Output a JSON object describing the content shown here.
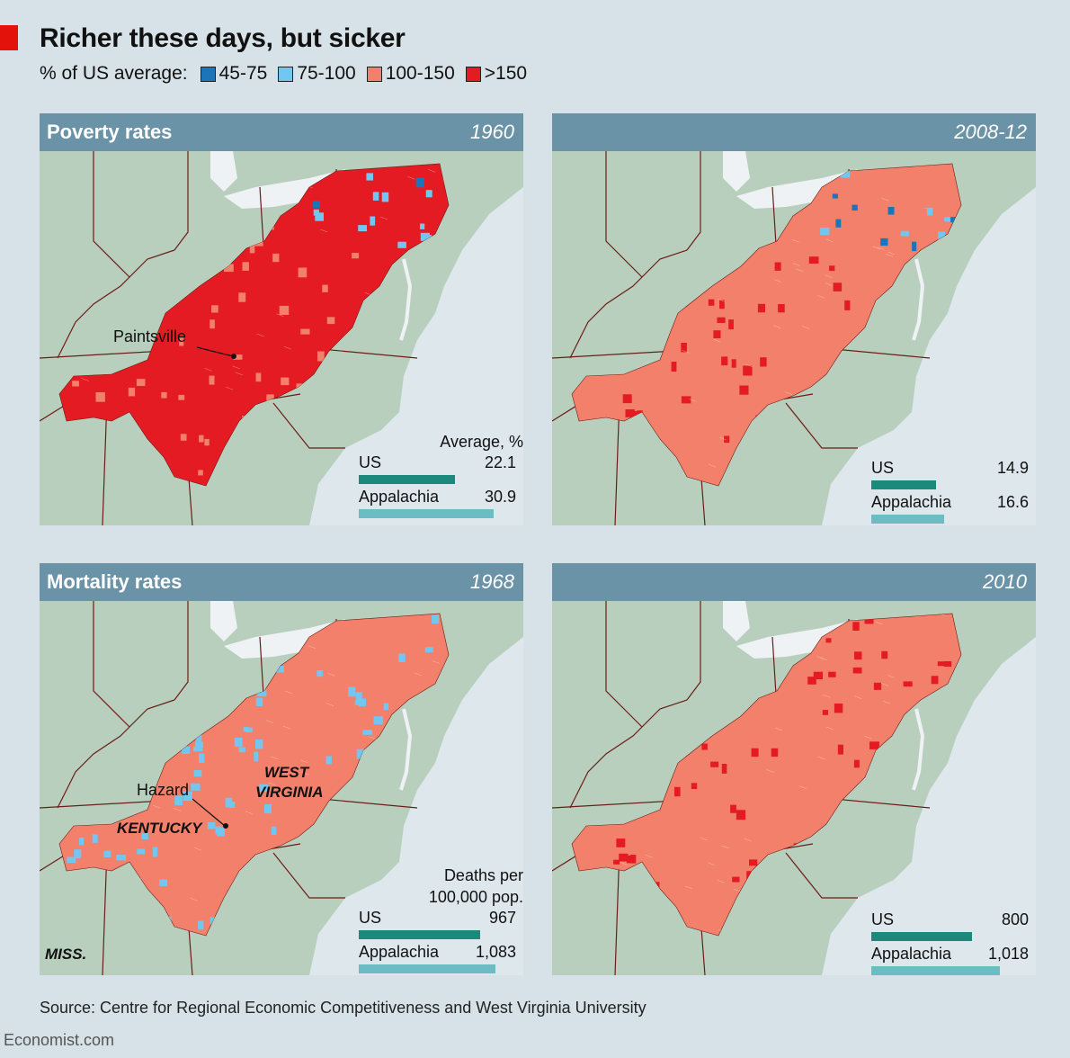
{
  "title": "Richer these days, but sicker",
  "legend": {
    "label": "% of US average:",
    "items": [
      {
        "label": "45-75",
        "color": "#1b75bb"
      },
      {
        "label": "75-100",
        "color": "#72c6f0"
      },
      {
        "label": "100-150",
        "color": "#f2806a"
      },
      {
        "label": ">150",
        "color": "#e41b23"
      }
    ]
  },
  "colors": {
    "header": "#6b93a8",
    "land": "#b9cfbe",
    "water_lake": "#eef2f4",
    "ocean": "#dde7ec",
    "border": "#6a1d16",
    "us_bar": "#1b8a7d",
    "appalachia_bar": "#6cbcc3"
  },
  "panels": [
    {
      "id": "poverty-1960",
      "section": "Poverty rates",
      "year": "1960",
      "dominant": "#e41b23",
      "secondary": "#f2806a",
      "north": "mixed-blue",
      "stat_caption": [
        "Average, %"
      ],
      "us_label": "US",
      "us_value": "22.1",
      "us_num": 22.1,
      "app_label": "Appalachia",
      "app_value": "30.9",
      "app_num": 30.9,
      "scale_max": 36,
      "annotations": [
        {
          "text": "Paintsville",
          "style": "normal"
        }
      ]
    },
    {
      "id": "poverty-2008",
      "section": "",
      "year": "2008-12",
      "dominant": "#f2806a",
      "secondary": "#e41b23",
      "north": "mixed-blue",
      "stat_caption": [],
      "us_label": "US",
      "us_value": "14.9",
      "us_num": 14.9,
      "app_label": "Appalachia",
      "app_value": "16.6",
      "app_num": 16.6,
      "scale_max": 36,
      "annotations": []
    },
    {
      "id": "mortality-1968",
      "section": "Mortality rates",
      "year": "1968",
      "dominant": "#f2806a",
      "secondary": "#72c6f0",
      "north": "salmon",
      "stat_caption": [
        "Deaths per",
        "100,000 pop."
      ],
      "us_label": "US",
      "us_value": "967",
      "us_num": 967,
      "app_label": "Appalachia",
      "app_value": "1,083",
      "app_num": 1083,
      "scale_max": 1250,
      "annotations": [
        {
          "text": "Hazard",
          "style": "normal"
        },
        {
          "text": "KENTUCKY",
          "style": "state"
        },
        {
          "text": "WEST",
          "style": "state"
        },
        {
          "text": "VIRGINIA",
          "style": "state"
        },
        {
          "text": "MISS.",
          "style": "state"
        }
      ]
    },
    {
      "id": "mortality-2010",
      "section": "",
      "year": "2010",
      "dominant": "#f2806a",
      "secondary": "#e41b23",
      "north": "salmon",
      "stat_caption": [],
      "us_label": "US",
      "us_value": "800",
      "us_num": 800,
      "app_label": "Appalachia",
      "app_value": "1,018",
      "app_num": 1018,
      "scale_max": 1250,
      "annotations": []
    }
  ],
  "source": "Source: Centre for Regional Economic Competitiveness and West Virginia University",
  "brand": "Economist.com"
}
